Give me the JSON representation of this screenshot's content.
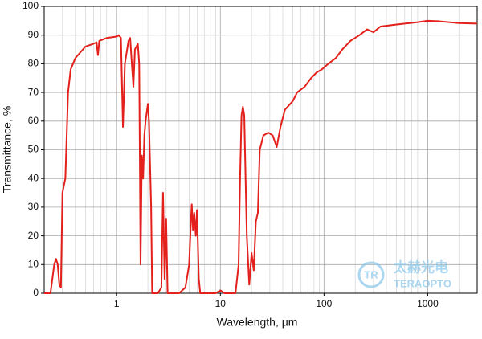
{
  "chart_data": {
    "type": "line",
    "x_label": "Wavelength, μm",
    "y_label": "Transmittance, %",
    "xscale": "log",
    "xlim": [
      0.2,
      3000
    ],
    "xticks": [
      1,
      10,
      100,
      1000
    ],
    "ylim": [
      0,
      100
    ],
    "yticks": [
      0,
      10,
      20,
      30,
      40,
      50,
      60,
      70,
      80,
      90,
      100
    ],
    "grid": true,
    "minor_grid": true,
    "series": [
      {
        "color": "#e3201b",
        "x": [
          0.2,
          0.23,
          0.25,
          0.26,
          0.27,
          0.28,
          0.29,
          0.3,
          0.32,
          0.34,
          0.36,
          0.4,
          0.5,
          0.6,
          0.64,
          0.66,
          0.68,
          0.8,
          1.0,
          1.05,
          1.1,
          1.15,
          1.2,
          1.3,
          1.35,
          1.4,
          1.45,
          1.5,
          1.6,
          1.65,
          1.7,
          1.75,
          1.8,
          1.85,
          1.9,
          2.0,
          2.05,
          2.15,
          2.2,
          2.25,
          2.5,
          2.7,
          2.8,
          2.9,
          3.0,
          3.1,
          4.0,
          4.6,
          5.0,
          5.2,
          5.3,
          5.45,
          5.6,
          5.8,
          5.95,
          6.2,
          6.4,
          9.0,
          10.0,
          11.0,
          14.0,
          15.0,
          15.5,
          16.0,
          16.5,
          17.0,
          18.0,
          19.0,
          20.0,
          21.0,
          22.0,
          23.0,
          24.0,
          26.0,
          29.0,
          32.0,
          35.0,
          38.0,
          42.0,
          50.0,
          55.0,
          65.0,
          75.0,
          85.0,
          95.0,
          110.0,
          130.0,
          150.0,
          180.0,
          220.0,
          260.0,
          300.0,
          350.0,
          450.0,
          600.0,
          800.0,
          1000.0,
          1300.0,
          2000.0,
          3000.0
        ],
        "values": [
          0,
          0,
          10,
          12,
          10,
          3,
          2,
          35,
          40,
          70,
          78,
          82,
          86,
          87,
          87.5,
          83,
          88,
          89,
          89.5,
          90,
          89,
          58,
          80,
          88,
          89,
          80,
          72,
          85,
          87,
          80,
          10,
          48,
          40,
          55,
          60,
          66,
          60,
          30,
          0,
          0,
          0,
          2,
          35,
          5,
          26,
          0,
          0,
          2,
          10,
          25,
          31,
          22,
          28,
          20,
          29,
          5,
          0,
          0,
          1,
          0,
          0,
          10,
          40,
          62,
          65,
          62,
          20,
          3,
          14,
          8,
          25,
          28,
          50,
          55,
          56,
          55,
          51,
          58,
          64,
          67,
          70,
          72,
          75,
          77,
          78,
          80,
          82,
          85,
          88,
          90,
          92,
          91,
          93,
          93.5,
          94,
          94.5,
          95,
          94.8,
          94.2,
          94
        ]
      }
    ],
    "watermark": {
      "logo": "TR",
      "name": "太赫光电",
      "brand": "TERAOPTO"
    }
  }
}
